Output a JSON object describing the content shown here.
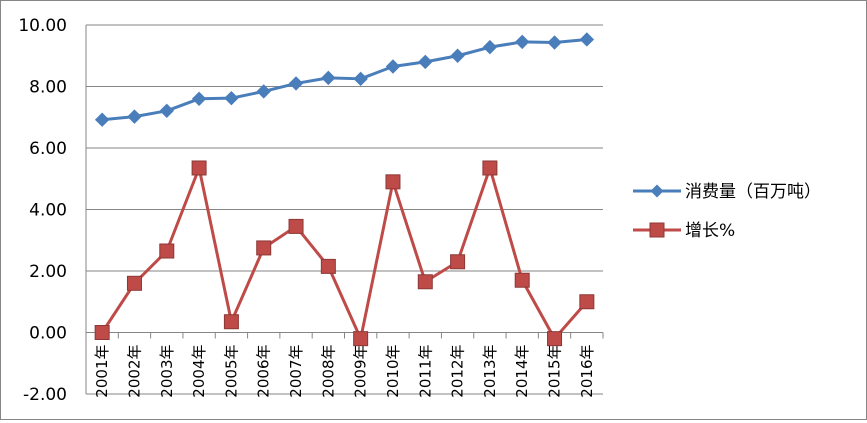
{
  "chart_data": {
    "type": "line",
    "categories": [
      "2001年",
      "2002年",
      "2003年",
      "2004年",
      "2005年",
      "2006年",
      "2007年",
      "2008年",
      "2009年",
      "2010年",
      "2011年",
      "2012年",
      "2013年",
      "2014年",
      "2015年",
      "2016年"
    ],
    "series": [
      {
        "name": "消费量（百万吨）",
        "color": "#4A7EBB",
        "marker": "diamond",
        "values": [
          6.92,
          7.02,
          7.21,
          7.6,
          7.62,
          7.84,
          8.1,
          8.28,
          8.25,
          8.65,
          8.8,
          9.0,
          9.28,
          9.45,
          9.43,
          9.53
        ]
      },
      {
        "name": "增长%",
        "color": "#BE4B48",
        "marker": "square",
        "values": [
          0.0,
          1.6,
          2.65,
          5.35,
          0.35,
          2.75,
          3.45,
          2.15,
          -0.2,
          4.9,
          1.65,
          2.3,
          5.35,
          1.7,
          -0.2,
          1.0
        ]
      }
    ],
    "yticks": [
      "-2.00",
      "0.00",
      "2.00",
      "4.00",
      "6.00",
      "8.00",
      "10.00"
    ],
    "ylim": [
      -2,
      10
    ],
    "grid": true,
    "legend_position": "right"
  }
}
